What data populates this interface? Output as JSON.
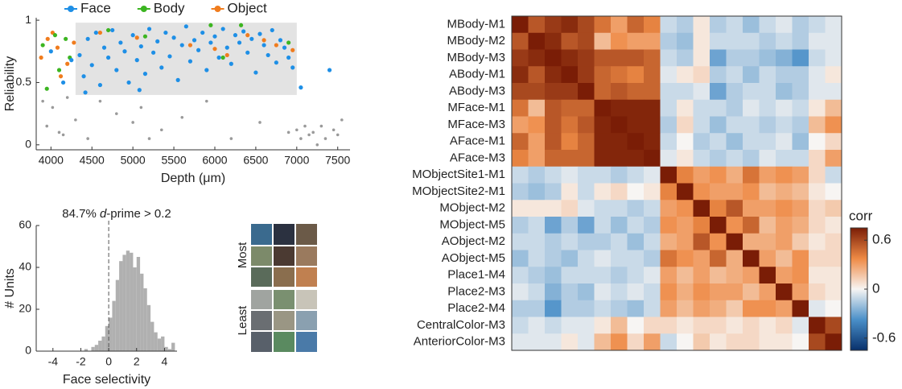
{
  "chart_data": [
    {
      "type": "scatter",
      "xlabel": "Depth (μm)",
      "ylabel": "Reliability",
      "xlim": [
        3820,
        7650
      ],
      "ylim": [
        -0.04,
        1.02
      ],
      "xticks": [
        4000,
        4500,
        5000,
        5500,
        6000,
        6500,
        7000,
        7500
      ],
      "yticks": [
        0,
        0.5,
        1
      ],
      "legend": "top",
      "highlight": {
        "x": [
          4300,
          7000
        ],
        "y": [
          0.4,
          0.98
        ],
        "color": "#e3e3e3"
      },
      "series": [
        {
          "name": "Face",
          "color": "#1e8fe6",
          "x": [
            4350,
            4400,
            4450,
            4500,
            4550,
            4600,
            4650,
            4700,
            4750,
            4800,
            4850,
            4900,
            4950,
            5000,
            5050,
            5100,
            5150,
            5200,
            5250,
            5300,
            5350,
            5400,
            5450,
            5500,
            5550,
            5600,
            5650,
            5700,
            5750,
            5800,
            5850,
            5900,
            5950,
            6000,
            6050,
            6100,
            6150,
            6200,
            6250,
            6300,
            6350,
            6400,
            6450,
            6500,
            6550,
            6600,
            6650,
            6700,
            6750,
            6800,
            6850,
            6900,
            6950,
            7050,
            7400,
            4000,
            4150,
            4250,
            4420,
            5080
          ],
          "values": [
            0.72,
            0.55,
            0.85,
            0.64,
            0.9,
            0.48,
            0.78,
            0.7,
            0.92,
            0.6,
            0.82,
            0.75,
            0.5,
            0.88,
            0.68,
            0.79,
            0.57,
            0.93,
            0.74,
            0.83,
            0.62,
            0.9,
            0.71,
            0.86,
            0.52,
            0.8,
            0.95,
            0.67,
            0.84,
            0.76,
            0.9,
            0.6,
            0.82,
            0.87,
            0.7,
            0.93,
            0.78,
            0.65,
            0.88,
            0.82,
            0.91,
            0.74,
            0.85,
            0.58,
            0.89,
            0.8,
            0.72,
            0.92,
            0.66,
            0.84,
            0.78,
            0.7,
            0.62,
            0.46,
            0.6,
            0.75,
            0.5,
            0.68,
            0.42,
            0.44
          ]
        },
        {
          "name": "Body",
          "color": "#3cb521",
          "x": [
            3900,
            3950,
            4050,
            4100,
            4180,
            4230,
            4700,
            5150,
            5950,
            6100,
            6320,
            6900
          ],
          "values": [
            0.8,
            0.45,
            0.88,
            0.6,
            0.85,
            0.7,
            0.92,
            0.87,
            0.96,
            0.7,
            0.96,
            0.82
          ]
        },
        {
          "name": "Object",
          "color": "#f07c1e",
          "x": [
            3880,
            3960,
            4020,
            4080,
            4120,
            4200,
            4280,
            4600,
            5050,
            5700,
            6000,
            6150,
            6400,
            6600,
            6750,
            6950
          ],
          "values": [
            0.7,
            0.85,
            0.9,
            0.78,
            0.55,
            0.65,
            0.82,
            0.9,
            0.86,
            0.8,
            0.77,
            0.72,
            0.88,
            0.84,
            0.8,
            0.76
          ]
        },
        {
          "color": "#9a9a9a",
          "x": [
            3900,
            3950,
            4020,
            4100,
            4150,
            4200,
            4300,
            4450,
            4600,
            4800,
            5000,
            5100,
            5200,
            5350,
            5600,
            5900,
            6200,
            6550,
            6900,
            7000,
            7050,
            7100,
            7150,
            7200,
            7250,
            7300,
            7350,
            7450,
            7500,
            7550
          ],
          "values": [
            0.35,
            0.15,
            0.3,
            0.1,
            0.08,
            0.38,
            0.2,
            0.05,
            0.35,
            0.25,
            0.18,
            0.3,
            0.05,
            0.12,
            0.22,
            0.35,
            0.05,
            0.18,
            0.1,
            0.12,
            0.05,
            0.15,
            0.08,
            0.1,
            0.0,
            0.15,
            0.05,
            0.12,
            0.08,
            0.2
          ]
        }
      ]
    },
    {
      "type": "histogram",
      "xlabel": "Face selectivity",
      "ylabel": "# Units",
      "annotation": [
        "84.7% ",
        "d",
        "-prime > 0.2"
      ],
      "vline": 0,
      "color": "#b0b0b0",
      "xlim": [
        -5.2,
        4.9
      ],
      "ylim": [
        0,
        60
      ],
      "xticks": [
        -4,
        -2,
        0,
        2,
        4
      ],
      "yticks": [
        0,
        20,
        40,
        60
      ],
      "bins": [
        -1.75,
        -1.5,
        -1.25,
        -1,
        -0.75,
        -0.5,
        -0.25,
        0,
        0.25,
        0.5,
        0.75,
        1,
        1.25,
        1.5,
        1.75,
        2,
        2.25,
        2.5,
        2.75,
        3,
        3.25,
        3.5,
        3.75,
        4,
        4.25,
        4.5,
        4.75
      ],
      "values": [
        1,
        0,
        2,
        3,
        5,
        7,
        12,
        16,
        24,
        34,
        43,
        46,
        48,
        47,
        40,
        45,
        37,
        30,
        22,
        14,
        9,
        6,
        7,
        2,
        1,
        4
      ]
    },
    {
      "type": "heatmap",
      "colorbar_title": "corr",
      "clim": [
        -0.75,
        0.75
      ],
      "cticks": [
        -0.6,
        0,
        0.6
      ],
      "colorscale": [
        "#08306b",
        "#4a8fc8",
        "#f7f5f3",
        "#ee8a45",
        "#7a1d06"
      ],
      "categories": [
        "MBody-M1",
        "MBody-M2",
        "MBody-M3",
        "ABody-M1",
        "ABody-M3",
        "MFace-M1",
        "MFace-M3",
        "AFace-M1",
        "AFace-M3",
        "MObjectSite1-M1",
        "MObjectSite2-M1",
        "MObject-M2",
        "MObject-M5",
        "AObject-M2",
        "AObject-M5",
        "Place1-M4",
        "Place2-M3",
        "Place2-M4",
        "CentralColor-M3",
        "AnteriorColor-M3"
      ],
      "values": [
        [
          0.75,
          0.55,
          0.65,
          0.7,
          0.6,
          0.45,
          0.3,
          0.5,
          0.4,
          -0.1,
          -0.15,
          0.05,
          -0.15,
          -0.1,
          -0.2,
          -0.1,
          -0.05,
          -0.15,
          -0.1,
          -0.05
        ],
        [
          0.55,
          0.75,
          0.7,
          0.55,
          0.6,
          0.2,
          0.35,
          0.3,
          0.3,
          -0.15,
          -0.2,
          0.05,
          -0.1,
          -0.1,
          -0.1,
          -0.15,
          -0.1,
          -0.15,
          -0.05,
          -0.05
        ],
        [
          0.65,
          0.7,
          0.75,
          0.7,
          0.65,
          0.55,
          0.55,
          0.55,
          0.5,
          -0.1,
          -0.15,
          0.05,
          -0.3,
          -0.15,
          -0.15,
          -0.2,
          -0.25,
          -0.35,
          -0.1,
          -0.05
        ],
        [
          0.7,
          0.55,
          0.7,
          0.75,
          0.65,
          0.5,
          0.45,
          0.4,
          0.5,
          -0.05,
          0.05,
          0.1,
          -0.15,
          -0.1,
          -0.2,
          -0.1,
          -0.15,
          -0.15,
          -0.05,
          0.05
        ],
        [
          0.6,
          0.6,
          0.65,
          0.65,
          0.75,
          0.5,
          0.55,
          0.5,
          0.5,
          -0.1,
          -0.1,
          -0.05,
          -0.3,
          -0.15,
          -0.1,
          -0.1,
          -0.2,
          -0.15,
          -0.05,
          -0.05
        ],
        [
          0.45,
          0.2,
          0.55,
          0.5,
          0.5,
          0.75,
          0.72,
          0.72,
          0.72,
          -0.1,
          0.05,
          -0.1,
          -0.1,
          -0.15,
          -0.05,
          -0.1,
          -0.05,
          -0.1,
          0.05,
          0.2
        ],
        [
          0.3,
          0.35,
          0.55,
          0.45,
          0.55,
          0.72,
          0.75,
          0.72,
          0.72,
          -0.15,
          0.1,
          -0.1,
          -0.2,
          -0.1,
          -0.1,
          -0.15,
          -0.1,
          -0.15,
          0.2,
          0.35
        ],
        [
          0.5,
          0.3,
          0.55,
          0.4,
          0.5,
          0.72,
          0.72,
          0.75,
          0.72,
          -0.1,
          0.0,
          -0.15,
          -0.1,
          -0.2,
          -0.1,
          -0.1,
          -0.05,
          -0.2,
          0.0,
          0.1
        ],
        [
          0.4,
          0.3,
          0.5,
          0.5,
          0.5,
          0.72,
          0.72,
          0.72,
          0.75,
          -0.05,
          0.05,
          -0.1,
          -0.15,
          -0.1,
          -0.15,
          -0.05,
          -0.1,
          -0.1,
          0.1,
          0.3
        ],
        [
          -0.1,
          -0.15,
          -0.1,
          -0.05,
          -0.1,
          -0.1,
          -0.15,
          -0.1,
          -0.05,
          0.75,
          0.4,
          0.3,
          0.35,
          0.25,
          0.45,
          0.3,
          0.35,
          0.3,
          0.1,
          -0.1
        ],
        [
          -0.15,
          -0.2,
          -0.15,
          0.05,
          -0.1,
          0.05,
          0.1,
          0.0,
          0.05,
          0.4,
          0.75,
          0.35,
          0.3,
          0.3,
          0.35,
          0.2,
          0.25,
          0.2,
          0.05,
          0.0
        ],
        [
          0.05,
          0.05,
          0.05,
          0.1,
          -0.05,
          -0.1,
          -0.1,
          -0.15,
          -0.1,
          0.3,
          0.35,
          0.75,
          0.4,
          0.55,
          0.3,
          0.3,
          0.35,
          0.3,
          0.1,
          0.15
        ],
        [
          -0.15,
          -0.1,
          -0.3,
          -0.15,
          -0.3,
          -0.1,
          -0.2,
          -0.1,
          -0.15,
          0.35,
          0.3,
          0.4,
          0.75,
          0.35,
          0.5,
          0.2,
          0.3,
          0.25,
          0.1,
          0.05
        ],
        [
          -0.1,
          -0.1,
          -0.15,
          -0.1,
          -0.15,
          -0.15,
          -0.1,
          -0.2,
          -0.1,
          0.25,
          0.3,
          0.55,
          0.35,
          0.75,
          0.25,
          0.25,
          0.3,
          0.15,
          0.05,
          0.1
        ],
        [
          -0.2,
          -0.1,
          -0.15,
          -0.2,
          -0.1,
          -0.05,
          -0.1,
          -0.1,
          -0.15,
          0.45,
          0.35,
          0.3,
          0.5,
          0.25,
          0.75,
          0.3,
          0.2,
          0.35,
          0.1,
          0.1
        ],
        [
          -0.1,
          -0.15,
          -0.2,
          -0.1,
          -0.1,
          -0.1,
          -0.15,
          -0.1,
          -0.05,
          0.3,
          0.2,
          0.3,
          0.2,
          0.25,
          0.3,
          0.75,
          0.3,
          0.35,
          0.05,
          0.05
        ],
        [
          -0.05,
          -0.1,
          -0.25,
          -0.15,
          -0.2,
          -0.05,
          -0.1,
          -0.05,
          -0.1,
          0.35,
          0.25,
          0.35,
          0.3,
          0.3,
          0.2,
          0.3,
          0.75,
          0.3,
          0.1,
          0.05
        ],
        [
          -0.15,
          -0.15,
          -0.35,
          -0.15,
          -0.15,
          -0.1,
          -0.15,
          -0.2,
          -0.1,
          0.3,
          0.2,
          0.3,
          0.25,
          0.15,
          0.35,
          0.35,
          0.3,
          0.75,
          -0.05,
          0.0
        ],
        [
          -0.1,
          -0.05,
          -0.1,
          -0.05,
          -0.05,
          0.05,
          0.2,
          0.0,
          0.1,
          0.1,
          0.05,
          0.1,
          0.1,
          0.05,
          0.1,
          0.05,
          0.1,
          -0.05,
          0.75,
          0.6
        ],
        [
          -0.05,
          -0.05,
          -0.05,
          0.05,
          -0.05,
          0.2,
          0.35,
          0.1,
          0.3,
          -0.1,
          0.0,
          0.15,
          0.05,
          0.1,
          0.1,
          0.05,
          0.05,
          0.0,
          0.6,
          0.75
        ]
      ]
    }
  ],
  "image_panel": {
    "labels": [
      "Most",
      "Least"
    ]
  }
}
